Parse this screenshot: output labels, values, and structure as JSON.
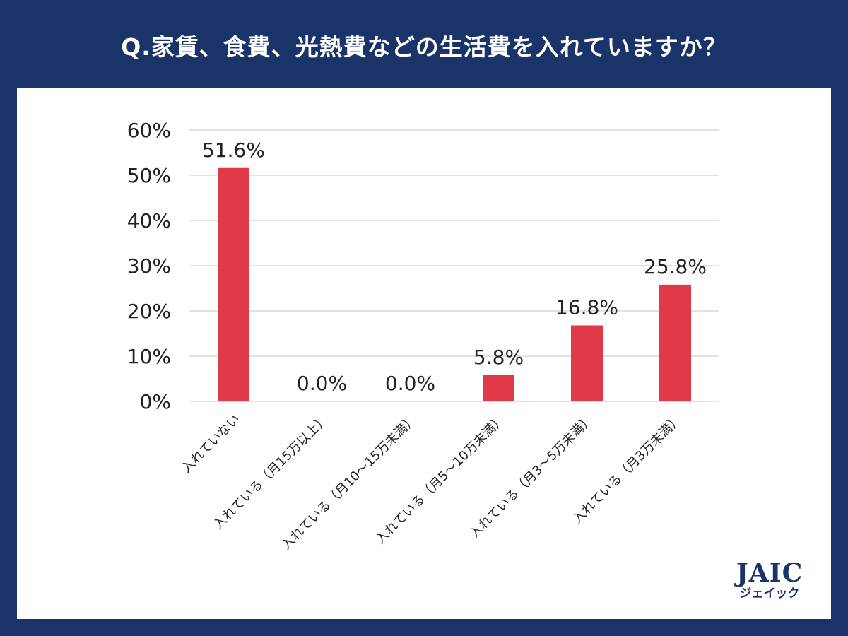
{
  "title": "Q.家賃、食費、光熱費などの生活費を入れていますか？",
  "chart_data": {
    "type": "bar",
    "categories": [
      "入れていない",
      "入れている（月15万以上）",
      "入れている（月10～15万未満）",
      "入れている（月5～10万未満）",
      "入れている（月3～5万未満）",
      "入れている（月3万未満）"
    ],
    "values": [
      51.6,
      0.0,
      0.0,
      5.8,
      16.8,
      25.8
    ],
    "value_labels": [
      "51.6%",
      "0.0%",
      "0.0%",
      "5.8%",
      "16.8%",
      "25.8%"
    ],
    "ylim": [
      0,
      60
    ],
    "yticks": [
      0,
      10,
      20,
      30,
      40,
      50,
      60
    ],
    "ytick_labels": [
      "0%",
      "10%",
      "20%",
      "30%",
      "40%",
      "50%",
      "60%"
    ],
    "grid": true,
    "bar_color": "#e03a48"
  },
  "logo": {
    "text": "JAIC",
    "subtext": "ジェイック"
  },
  "colors": {
    "background": "#1a3368",
    "panel": "#ffffff",
    "gridline": "#d9d9d9"
  }
}
